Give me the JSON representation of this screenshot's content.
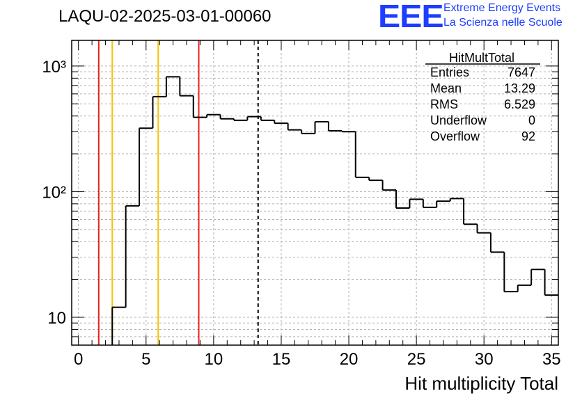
{
  "header": {
    "title": "LAQU-02-2025-03-01-00060",
    "logo_text": "EEE",
    "tagline_1": "Extreme Energy Events",
    "tagline_2": "La Scienza nelle Scuole"
  },
  "colors": {
    "histogram": "#000000",
    "logo": "#1f3dff",
    "red_line": "#e8201c",
    "yellow_line": "#f5c400",
    "grid": "#b0b0b0"
  },
  "stats_box": {
    "title": "HitMultTotal",
    "rows": [
      {
        "label": "Entries",
        "value": "7647"
      },
      {
        "label": "Mean",
        "value": "13.29"
      },
      {
        "label": "RMS",
        "value": "6.529"
      },
      {
        "label": "Underflow",
        "value": "0"
      },
      {
        "label": "Overflow",
        "value": "92"
      }
    ]
  },
  "chart_data": {
    "type": "histogram",
    "xlabel": "Hit multiplicity Total",
    "ylabel": "",
    "y_scale": "log",
    "xlim": [
      -0.5,
      35.5
    ],
    "ylim": [
      6,
      1600
    ],
    "bin_width": 1,
    "x_ticks": [
      "0",
      "5",
      "10",
      "15",
      "20",
      "25",
      "30",
      "35"
    ],
    "y_ticks": [
      {
        "value": 10,
        "label": "10"
      },
      {
        "value": 100,
        "label": "10²"
      },
      {
        "value": 1000,
        "label": "10³"
      }
    ],
    "grid": true,
    "bin_low_edges": [
      -0.5,
      0.5,
      1.5,
      2.5,
      3.5,
      4.5,
      5.5,
      6.5,
      7.5,
      8.5,
      9.5,
      10.5,
      11.5,
      12.5,
      13.5,
      14.5,
      15.5,
      16.5,
      17.5,
      18.5,
      19.5,
      20.5,
      21.5,
      22.5,
      23.5,
      24.5,
      25.5,
      26.5,
      27.5,
      28.5,
      29.5,
      30.5,
      31.5,
      32.5,
      33.5,
      34.5
    ],
    "counts": [
      0,
      0,
      0,
      12,
      77,
      320,
      570,
      820,
      580,
      390,
      410,
      380,
      370,
      395,
      370,
      350,
      310,
      290,
      360,
      305,
      300,
      130,
      123,
      103,
      74,
      87,
      75,
      84,
      88,
      55,
      47,
      33,
      16,
      18,
      24,
      15
    ],
    "vertical_lines": [
      {
        "x": 1.5,
        "color": "red",
        "style": "solid"
      },
      {
        "x": 2.5,
        "color": "yellow",
        "style": "solid"
      },
      {
        "x": 5.9,
        "color": "yellow",
        "style": "solid"
      },
      {
        "x": 8.9,
        "color": "red",
        "style": "solid"
      },
      {
        "x": 13.29,
        "color": "black",
        "style": "dashed"
      }
    ],
    "legend_position": "top-right"
  }
}
